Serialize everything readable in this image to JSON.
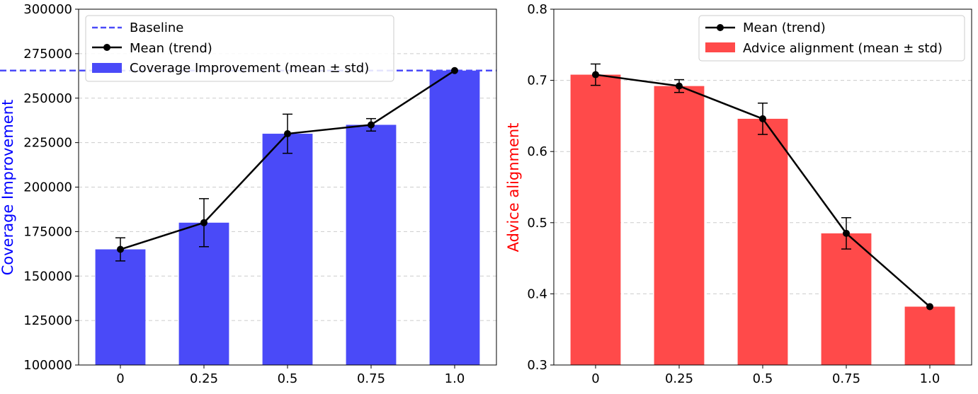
{
  "chart_data": [
    {
      "type": "bar",
      "categories": [
        "0",
        "0.25",
        "0.5",
        "0.75",
        "1.0"
      ],
      "series": [
        {
          "name": "Coverage Improvement (mean ± std)",
          "values": [
            165000,
            180000,
            230000,
            235000,
            265500
          ],
          "std": [
            6500,
            13500,
            11000,
            3500,
            0
          ],
          "color": "#4a4af8"
        },
        {
          "name": "Mean (trend)",
          "type": "line",
          "values": [
            165000,
            180000,
            230000,
            235000,
            265500
          ],
          "color": "#000000"
        }
      ],
      "baseline": {
        "name": "Baseline",
        "value": 265500,
        "color": "#4a4af8"
      },
      "title": "",
      "xlabel": "",
      "ylabel": "Coverage Improvement",
      "ylabel_color": "#0000ff",
      "ylim": [
        100000,
        300000
      ],
      "yticks": [
        100000,
        125000,
        150000,
        175000,
        200000,
        225000,
        250000,
        275000,
        300000
      ],
      "grid": "y-dashed",
      "legend": "top-left"
    },
    {
      "type": "bar",
      "categories": [
        "0",
        "0.25",
        "0.5",
        "0.75",
        "1.0"
      ],
      "series": [
        {
          "name": "Advice alignment (mean ± std)",
          "values": [
            0.708,
            0.692,
            0.646,
            0.485,
            0.382
          ],
          "std": [
            0.015,
            0.009,
            0.022,
            0.022,
            0.0
          ],
          "color": "#ff4a4a"
        },
        {
          "name": "Mean (trend)",
          "type": "line",
          "values": [
            0.708,
            0.692,
            0.646,
            0.485,
            0.382
          ],
          "color": "#000000"
        }
      ],
      "title": "",
      "xlabel": "",
      "ylabel": "Advice alignment",
      "ylabel_color": "#ff0000",
      "ylim": [
        0.3,
        0.8
      ],
      "yticks": [
        "0.3",
        "0.4",
        "0.5",
        "0.6",
        "0.7",
        "0.8"
      ],
      "grid": "y-dashed",
      "legend": "top-right"
    }
  ]
}
